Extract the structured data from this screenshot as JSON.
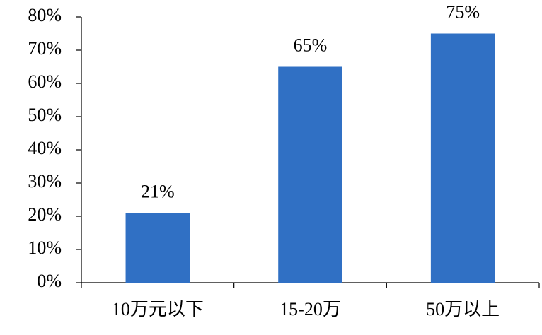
{
  "chart_data": {
    "type": "bar",
    "categories": [
      "10万元以下",
      "15-20万",
      "50万以上"
    ],
    "values": [
      21,
      65,
      75
    ],
    "value_labels": [
      "21%",
      "65%",
      "75%"
    ],
    "color": "#3070c4",
    "ylim": [
      0,
      80
    ],
    "yticks": [
      {
        "value": 0,
        "label": "0%"
      },
      {
        "value": 10,
        "label": "10%"
      },
      {
        "value": 20,
        "label": "20%"
      },
      {
        "value": 30,
        "label": "30%"
      },
      {
        "value": 40,
        "label": "40%"
      },
      {
        "value": 50,
        "label": "50%"
      },
      {
        "value": 60,
        "label": "60%"
      },
      {
        "value": 70,
        "label": "70%"
      },
      {
        "value": 80,
        "label": "80%"
      }
    ],
    "grid": false
  }
}
